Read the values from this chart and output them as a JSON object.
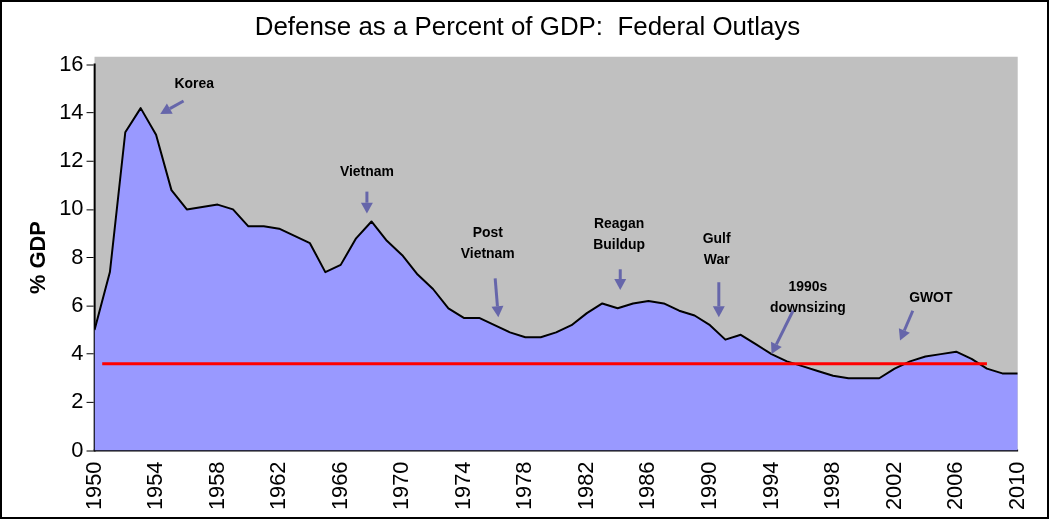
{
  "chart_data": {
    "type": "area",
    "title": "Defense as a Percent of GDP:  Federal Outlays",
    "ylabel": "% GDP",
    "x": [
      1950,
      1951,
      1952,
      1953,
      1954,
      1955,
      1956,
      1957,
      1958,
      1959,
      1960,
      1961,
      1962,
      1963,
      1964,
      1965,
      1966,
      1967,
      1968,
      1969,
      1970,
      1971,
      1972,
      1973,
      1974,
      1975,
      1976,
      1977,
      1978,
      1979,
      1980,
      1981,
      1982,
      1983,
      1984,
      1985,
      1986,
      1987,
      1988,
      1989,
      1990,
      1991,
      1992,
      1993,
      1994,
      1995,
      1996,
      1997,
      1998,
      1999,
      2000,
      2001,
      2002,
      2003,
      2004,
      2005,
      2006,
      2007,
      2008,
      2009,
      2010
    ],
    "series": [
      {
        "type": "area",
        "color": "#9999ff",
        "values": [
          5.0,
          7.4,
          13.2,
          14.2,
          13.1,
          10.8,
          10.0,
          10.1,
          10.2,
          10.0,
          9.3,
          9.3,
          9.2,
          8.9,
          8.6,
          7.4,
          7.7,
          8.8,
          9.5,
          8.7,
          8.1,
          7.3,
          6.7,
          5.9,
          5.5,
          5.5,
          5.2,
          4.9,
          4.7,
          4.7,
          4.9,
          5.2,
          5.7,
          6.1,
          5.9,
          6.1,
          6.2,
          6.1,
          5.8,
          5.6,
          5.2,
          4.6,
          4.8,
          4.4,
          4.0,
          3.7,
          3.5,
          3.3,
          3.1,
          3.0,
          3.0,
          3.0,
          3.4,
          3.7,
          3.9,
          4.0,
          4.1,
          3.8,
          3.4,
          3.2,
          3.2
        ]
      },
      {
        "type": "line",
        "color": "#ff0000",
        "x": [
          1950.5,
          2008
        ],
        "values": [
          3.6,
          3.6
        ]
      }
    ],
    "annotations": [
      "Korea",
      "Vietnam",
      "Post\nVietnam",
      "Reagan\nBuildup",
      "Gulf\nWar",
      {
        "text": "1990s\ndownsizing",
        "x": 1994,
        "y": 4.0
      },
      "GWOT"
    ],
    "xlim": [
      1950,
      2010
    ],
    "xticks": [
      1950,
      1954,
      1958,
      1962,
      1966,
      1970,
      1974,
      1978,
      1982,
      1986,
      1990,
      1994,
      1998,
      2002,
      2006,
      2010
    ],
    "ylim": [
      0,
      16
    ],
    "yticks": [
      0,
      2,
      4,
      6,
      8,
      10,
      12,
      14,
      16
    ],
    "grid": false,
    "legend": false,
    "marker": "none"
  }
}
